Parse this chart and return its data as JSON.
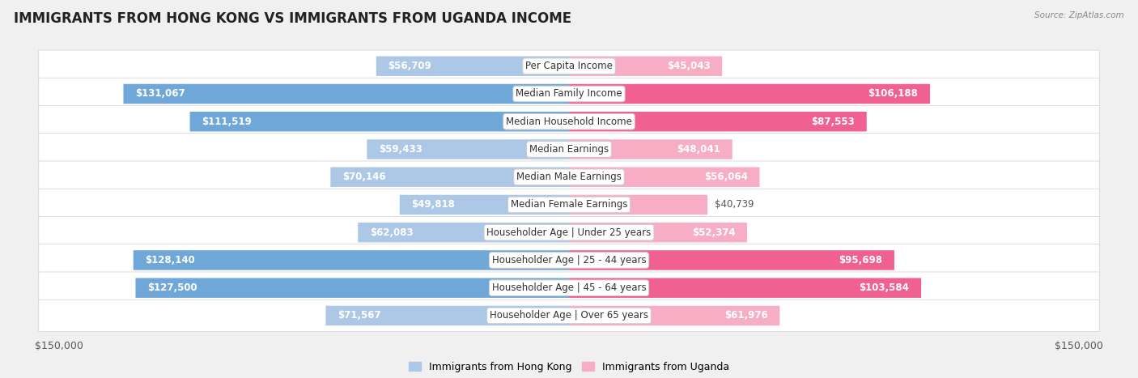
{
  "title": "IMMIGRANTS FROM HONG KONG VS IMMIGRANTS FROM UGANDA INCOME",
  "source": "Source: ZipAtlas.com",
  "categories": [
    "Per Capita Income",
    "Median Family Income",
    "Median Household Income",
    "Median Earnings",
    "Median Male Earnings",
    "Median Female Earnings",
    "Householder Age | Under 25 years",
    "Householder Age | 25 - 44 years",
    "Householder Age | 45 - 64 years",
    "Householder Age | Over 65 years"
  ],
  "hong_kong_values": [
    56709,
    131067,
    111519,
    59433,
    70146,
    49818,
    62083,
    128140,
    127500,
    71567
  ],
  "uganda_values": [
    45043,
    106188,
    87553,
    48041,
    56064,
    40739,
    52374,
    95698,
    103584,
    61976
  ],
  "max_value": 150000,
  "hong_kong_color_light": "#adc8e6",
  "hong_kong_color_dark": "#6fa8d8",
  "uganda_color_light": "#f7aec4",
  "uganda_color_dark": "#f06090",
  "hong_kong_label": "Immigrants from Hong Kong",
  "uganda_label": "Immigrants from Uganda",
  "background_color": "#f0f0f0",
  "row_bg_color": "#ffffff",
  "title_fontsize": 12,
  "label_fontsize": 8.5,
  "value_fontsize": 8.5,
  "axis_label_fontsize": 9,
  "inside_label_threshold": 80000
}
